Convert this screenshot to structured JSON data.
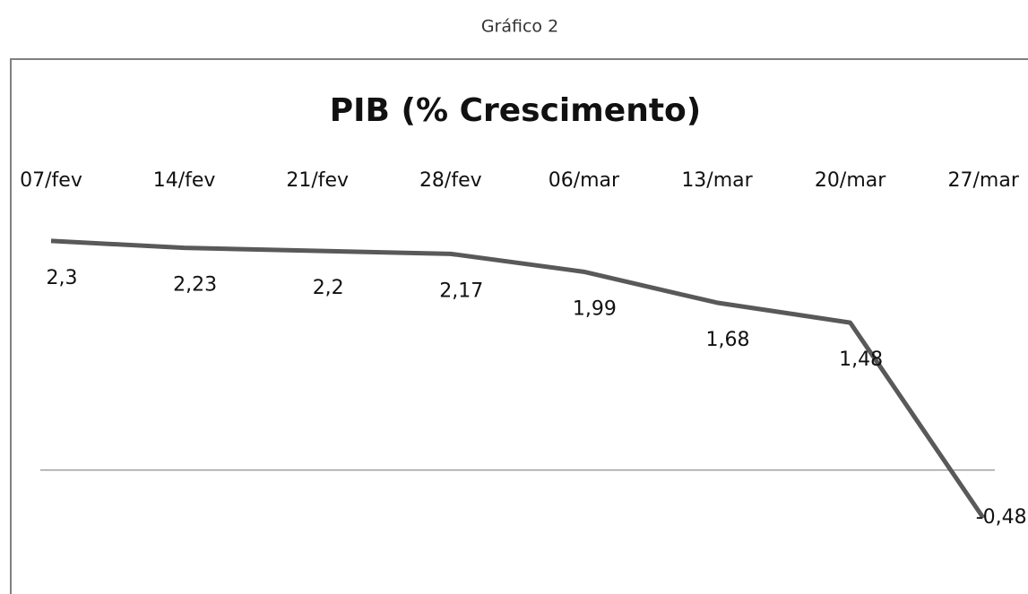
{
  "chart_data": {
    "type": "line",
    "caption": "Gráfico 2",
    "title": "PIB (% Crescimento)",
    "categories": [
      "07/fev",
      "14/fev",
      "21/fev",
      "28/fev",
      "06/mar",
      "13/mar",
      "20/mar",
      "27/mar"
    ],
    "values": [
      2.3,
      2.23,
      2.2,
      2.17,
      1.99,
      1.68,
      1.48,
      -0.48
    ],
    "value_labels": [
      "2,3",
      "2,23",
      "2,2",
      "2,17",
      "1,99",
      "1,68",
      "1,48",
      "-0,48"
    ],
    "color": "#595959",
    "ylim": [
      -1,
      3
    ]
  }
}
